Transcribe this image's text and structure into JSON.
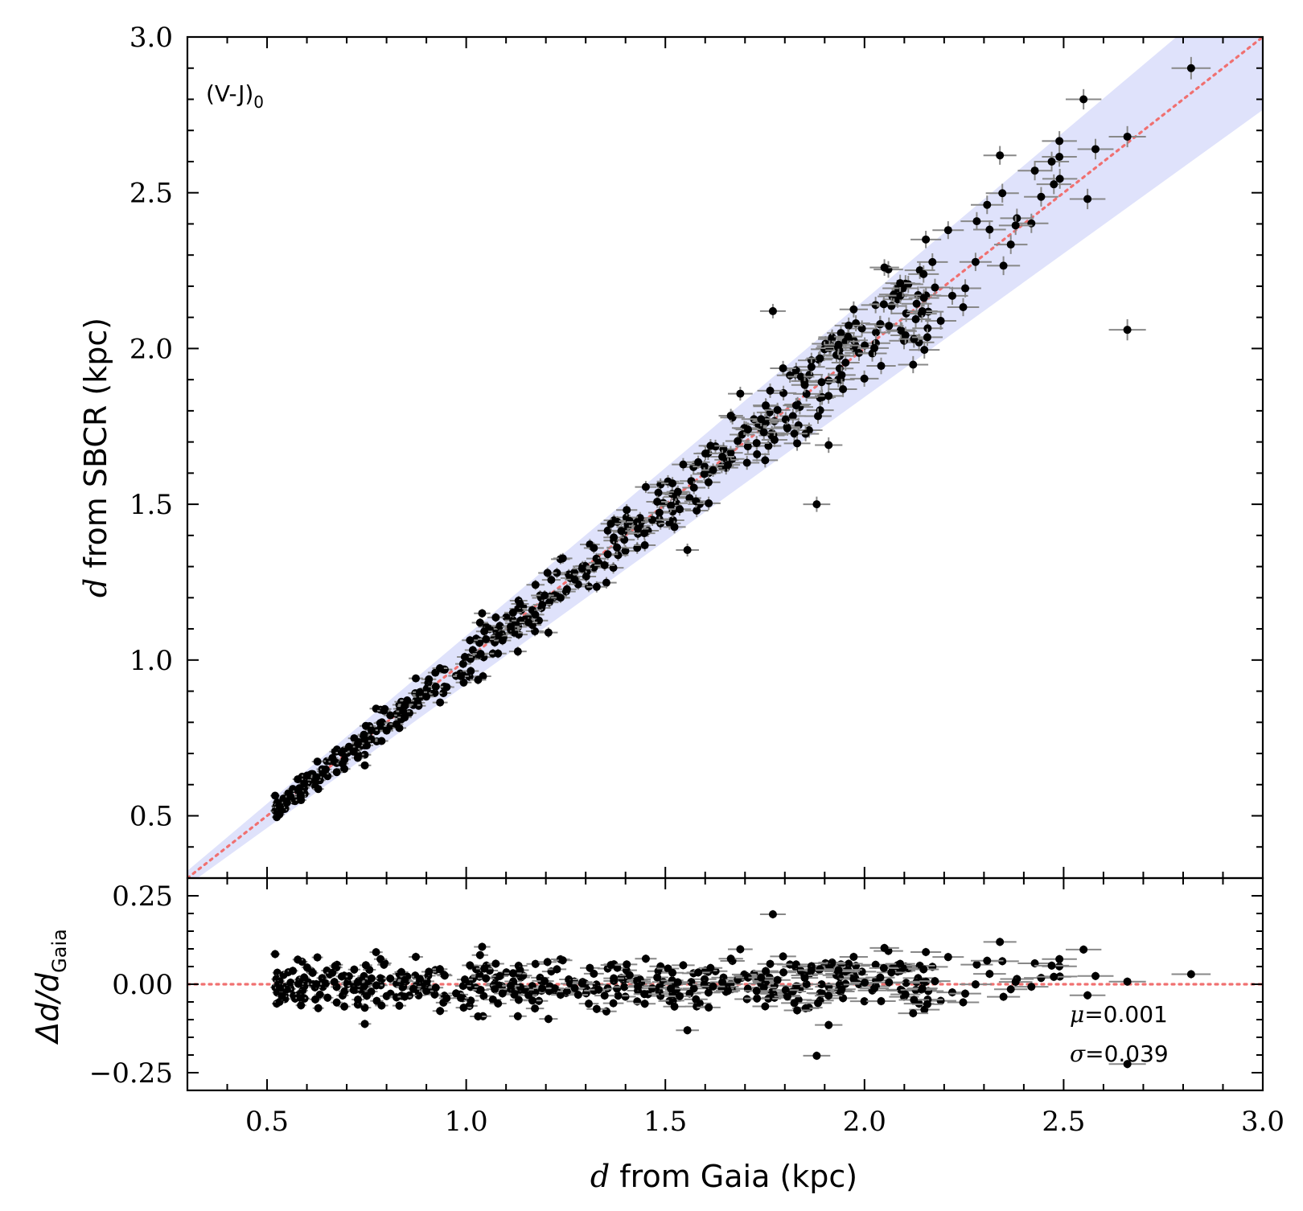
{
  "chart_data": [
    {
      "panel": "main",
      "type": "scatter",
      "annotation": "(V-J)",
      "annotation_subscript": "0",
      "xlabel_var": "d",
      "xlabel_rest": " from Gaia (kpc)",
      "ylabel_var": "d",
      "ylabel_rest": " from SBCR (kpc)",
      "xlim": [
        0.3,
        3.0
      ],
      "ylim": [
        0.3,
        3.0
      ],
      "xticks": [
        0.5,
        1.0,
        1.5,
        2.0,
        2.5,
        3.0
      ],
      "xtick_labels": [
        "0.5",
        "1.0",
        "1.5",
        "2.0",
        "2.5",
        "3.0"
      ],
      "yticks": [
        0.5,
        1.0,
        1.5,
        2.0,
        2.5,
        3.0
      ],
      "ytick_labels": [
        "0.5",
        "1.0",
        "1.5",
        "2.0",
        "2.5",
        "3.0"
      ],
      "one_to_one_line": {
        "x": [
          0.3,
          3.0
        ],
        "y": [
          0.3,
          3.0
        ],
        "color": "#f07070",
        "style": "dotted"
      },
      "band": {
        "description": "±2σ relative band",
        "sigma": 0.039,
        "color": "#dfe2fb"
      },
      "points_model": {
        "n": 500,
        "x_range": [
          0.52,
          2.85
        ],
        "relative_scatter_sigma": 0.039
      },
      "outliers": [
        {
          "x": 1.77,
          "y": 2.12
        },
        {
          "x": 1.88,
          "y": 1.5
        },
        {
          "x": 2.66,
          "y": 2.06
        },
        {
          "x": 2.82,
          "y": 2.9
        },
        {
          "x": 2.55,
          "y": 2.8
        },
        {
          "x": 2.34,
          "y": 2.62
        },
        {
          "x": 2.47,
          "y": 2.6
        },
        {
          "x": 2.58,
          "y": 2.64
        },
        {
          "x": 2.66,
          "y": 2.68
        },
        {
          "x": 2.56,
          "y": 2.48
        },
        {
          "x": 2.21,
          "y": 2.38
        },
        {
          "x": 2.05,
          "y": 2.26
        },
        {
          "x": 1.91,
          "y": 1.69
        },
        {
          "x": 1.04,
          "y": 1.15
        }
      ],
      "marker_color": "#000000",
      "errorbar_color": "#888888"
    },
    {
      "panel": "residual",
      "type": "scatter",
      "ylabel_main": "Δd/d",
      "ylabel_sub": "Gaia",
      "xlim": [
        0.3,
        3.0
      ],
      "ylim": [
        -0.3,
        0.3
      ],
      "yticks": [
        0.25,
        0.0,
        -0.25
      ],
      "ytick_labels": [
        "0.25",
        "0.00",
        "−0.25"
      ],
      "zero_line": {
        "y": 0.0,
        "color": "#f07070",
        "style": "dotted"
      },
      "stats": {
        "mu_symbol": "μ",
        "mu_text": "=0.001",
        "sigma_symbol": "σ",
        "sigma_text": "=0.039"
      },
      "mean": 0.001,
      "std": 0.039
    }
  ]
}
